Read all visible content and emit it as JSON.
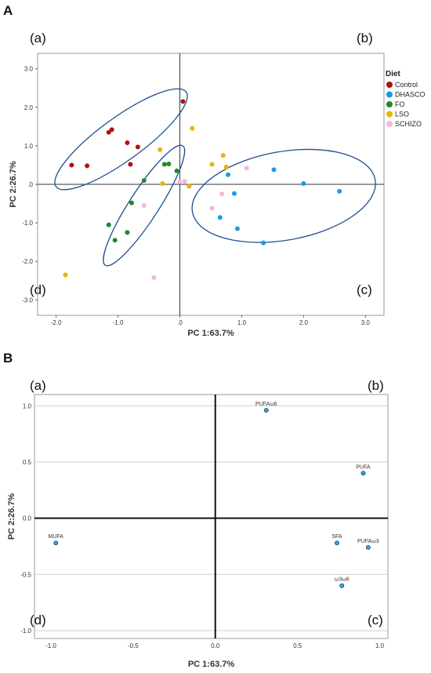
{
  "panels": {
    "A": {
      "letter": "A",
      "quadrants": [
        "(a)",
        "(b)",
        "(c)",
        "(d)"
      ]
    },
    "B": {
      "letter": "B",
      "quadrants": [
        "(a)",
        "(b)",
        "(c)",
        "(d)"
      ]
    }
  },
  "chart_data": [
    {
      "type": "scatter",
      "xlabel": "PC 1:63.7%",
      "ylabel": "PC 2:26.7%",
      "xlim": [
        -2.3,
        3.3
      ],
      "ylim": [
        -3.4,
        3.4
      ],
      "xticks": [
        "-2.0",
        "-1.0",
        ".0",
        "1.0",
        "2.0",
        "3.0"
      ],
      "xtick_values": [
        -2,
        -1,
        0,
        1,
        2,
        3
      ],
      "yticks": [
        "3.0",
        "2.0",
        "1.0",
        ".0",
        "-1.0",
        "-2.0",
        "-3.0"
      ],
      "ytick_values": [
        3,
        2,
        1,
        0,
        -1,
        -2,
        -3
      ],
      "legend_title": "Diet",
      "legend_position": "top-right",
      "series": [
        {
          "name": "Control",
          "color": "#b01010",
          "points": [
            [
              0.05,
              2.15
            ],
            [
              -1.1,
              1.42
            ],
            [
              -1.15,
              1.35
            ],
            [
              -0.85,
              1.08
            ],
            [
              -0.68,
              0.97
            ],
            [
              -0.8,
              0.52
            ],
            [
              -1.75,
              0.5
            ],
            [
              -1.5,
              0.48
            ]
          ]
        },
        {
          "name": "DHASCO",
          "color": "#1a9be0",
          "points": [
            [
              1.52,
              0.38
            ],
            [
              0.78,
              0.25
            ],
            [
              2.0,
              0.02
            ],
            [
              2.58,
              -0.18
            ],
            [
              0.88,
              -0.24
            ],
            [
              0.65,
              -0.86
            ],
            [
              0.93,
              -1.15
            ],
            [
              1.35,
              -1.52
            ]
          ]
        },
        {
          "name": "FO",
          "color": "#1a8a2a",
          "points": [
            [
              -0.25,
              0.52
            ],
            [
              -0.18,
              0.53
            ],
            [
              -0.05,
              0.35
            ],
            [
              -0.58,
              0.1
            ],
            [
              -0.78,
              -0.48
            ],
            [
              -1.15,
              -1.05
            ],
            [
              -0.85,
              -1.25
            ],
            [
              -1.05,
              -1.45
            ]
          ]
        },
        {
          "name": "LSO",
          "color": "#e8b400",
          "points": [
            [
              0.2,
              1.45
            ],
            [
              -0.32,
              0.9
            ],
            [
              0.7,
              0.75
            ],
            [
              0.52,
              0.52
            ],
            [
              0.75,
              0.45
            ],
            [
              -0.28,
              0.02
            ],
            [
              0.15,
              -0.05
            ],
            [
              -1.85,
              -2.35
            ]
          ]
        },
        {
          "name": "SCHIZO",
          "color": "#f5b8d8",
          "points": [
            [
              1.08,
              0.42
            ],
            [
              0.0,
              0.06
            ],
            [
              0.08,
              0.08
            ],
            [
              -0.58,
              -0.55
            ],
            [
              0.68,
              -0.25
            ],
            [
              0.52,
              -0.62
            ],
            [
              -0.42,
              -2.42
            ]
          ]
        }
      ],
      "ellipses": [
        {
          "center": [
            -0.95,
            1.17
          ],
          "radii": [
            1.3,
            0.56
          ],
          "angle_deg": 36
        },
        {
          "center": [
            -0.58,
            -0.55
          ],
          "radii": [
            1.15,
            0.38
          ],
          "angle_deg": 57
        },
        {
          "center": [
            1.68,
            -0.3
          ],
          "radii": [
            1.5,
            1.15
          ],
          "angle_deg": 10
        }
      ],
      "ellipse_color": "#1d4f8f",
      "grid": false
    },
    {
      "type": "scatter",
      "xlabel": "PC 1:63.7%",
      "ylabel": "PC 2:26.7%",
      "xlim": [
        -1.1,
        1.05
      ],
      "ylim": [
        -1.07,
        1.1
      ],
      "xticks": [
        "-1.0",
        "-0.5",
        "0.0",
        "0.5",
        "1.0"
      ],
      "xtick_values": [
        -1,
        -0.5,
        0,
        0.5,
        1
      ],
      "yticks": [
        "1.0",
        "0.5",
        "0.0",
        "-0.5",
        "-1.0"
      ],
      "ytick_values": [
        1,
        0.5,
        0,
        -0.5,
        -1
      ],
      "grid": true,
      "point_color": "#2ea3dc",
      "points": [
        {
          "label": "PUFAω6",
          "x": 0.31,
          "y": 0.96
        },
        {
          "label": "PUFA",
          "x": 0.9,
          "y": 0.4
        },
        {
          "label": "MUFA",
          "x": -0.97,
          "y": -0.22
        },
        {
          "label": "SFA",
          "x": 0.74,
          "y": -0.22
        },
        {
          "label": "PUFAω3",
          "x": 0.93,
          "y": -0.26
        },
        {
          "label": "ω3ω6",
          "x": 0.77,
          "y": -0.6
        }
      ]
    }
  ]
}
